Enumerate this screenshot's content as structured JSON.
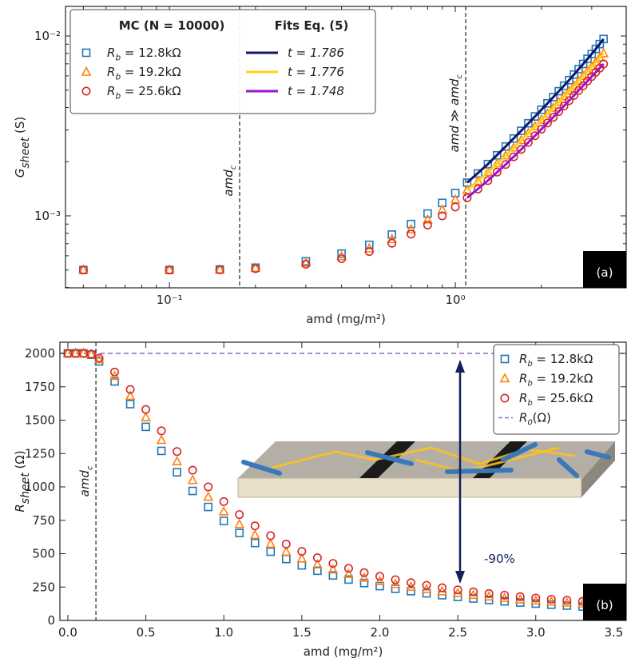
{
  "chart_data": [
    {
      "type": "scatter",
      "xscale": "log",
      "yscale": "log",
      "xlim": [
        0.0433,
        3.96
      ],
      "ylim": [
        0.000398,
        0.0146
      ],
      "xticks": [
        {
          "value": 0.1,
          "label": "10⁻¹"
        },
        {
          "value": 1,
          "label": "10⁰"
        }
      ],
      "xminorticks": [
        0.05,
        0.06,
        0.07,
        0.08,
        0.09,
        0.2,
        0.3,
        0.4,
        0.5,
        0.6,
        0.7,
        0.8,
        0.9,
        2,
        3
      ],
      "yticks": [
        {
          "value": 0.001,
          "label": "10⁻³"
        },
        {
          "value": 0.01,
          "label": "10⁻²"
        }
      ],
      "yminorticks": [
        0.0004,
        0.0005,
        0.0006,
        0.0007,
        0.0008,
        0.0009,
        0.002,
        0.003,
        0.004,
        0.005,
        0.006,
        0.007,
        0.008,
        0.009
      ],
      "xlabel": "amd (mg/m²)",
      "ylabel": [
        "G",
        "sheet",
        " (S)"
      ],
      "panel_label": "(a)",
      "legend": "upper left",
      "legend_titles": [
        "MC (N = 10000)",
        "Fits Eq. (5)"
      ],
      "vlines": [
        {
          "x": 0.176,
          "label": [
            "amd",
            "c"
          ]
        },
        {
          "x": 1.087,
          "label": [
            "amd ≫ amd",
            "c"
          ]
        }
      ],
      "x": [
        0.05,
        0.1,
        0.15,
        0.2,
        0.3,
        0.4,
        0.5,
        0.6,
        0.7,
        0.8,
        0.9,
        1.0,
        1.1,
        1.2,
        1.3,
        1.4,
        1.5,
        1.6,
        1.7,
        1.8,
        1.9,
        2.0,
        2.1,
        2.2,
        2.3,
        2.4,
        2.5,
        2.6,
        2.7,
        2.8,
        2.9,
        3.0,
        3.1,
        3.2,
        3.3
      ],
      "series": [
        {
          "name": [
            "R",
            "b",
            " = 12.8kΩ"
          ],
          "color": "#1f77b4",
          "marker": "square",
          "values": [
            0.0005,
            0.0005,
            0.000503,
            0.000515,
            0.000559,
            0.000617,
            0.00069,
            0.000787,
            0.000901,
            0.00103,
            0.00118,
            0.00134,
            0.00153,
            0.00172,
            0.00194,
            0.00217,
            0.00243,
            0.00269,
            0.00297,
            0.00327,
            0.00357,
            0.00389,
            0.00422,
            0.00457,
            0.00493,
            0.00529,
            0.00568,
            0.0061,
            0.00654,
            0.00699,
            0.00746,
            0.00794,
            0.00847,
            0.00901,
            0.00962
          ]
        },
        {
          "name": [
            "R",
            "b",
            " = 19.2kΩ"
          ],
          "color": "#ff7f0e",
          "marker": "triangle",
          "values": [
            0.0005,
            0.0005,
            0.000502,
            0.000512,
            0.000546,
            0.000595,
            0.000658,
            0.000741,
            0.00084,
            0.000952,
            0.00108,
            0.00123,
            0.00139,
            0.00156,
            0.00175,
            0.00195,
            0.00216,
            0.00239,
            0.00263,
            0.00288,
            0.00314,
            0.00341,
            0.00369,
            0.00398,
            0.00429,
            0.00461,
            0.00493,
            0.00526,
            0.00562,
            0.00599,
            0.00637,
            0.00676,
            0.00714,
            0.00758,
            0.008
          ]
        },
        {
          "name": [
            "R",
            "b",
            " = 25.6kΩ"
          ],
          "color": "#d62728",
          "marker": "circle",
          "values": [
            0.0005,
            0.0005,
            0.000501,
            0.000509,
            0.000538,
            0.000578,
            0.000633,
            0.000704,
            0.000791,
            0.000889,
            0.001,
            0.00112,
            0.00126,
            0.00141,
            0.00157,
            0.00175,
            0.00193,
            0.00213,
            0.00234,
            0.00256,
            0.00279,
            0.00303,
            0.00328,
            0.00353,
            0.0038,
            0.00408,
            0.00437,
            0.00467,
            0.00498,
            0.00529,
            0.00562,
            0.00595,
            0.00629,
            0.00662,
            0.00699
          ]
        }
      ],
      "fit_x": [
        1.1,
        1.3,
        1.5,
        1.7,
        1.9,
        2.1,
        2.3,
        2.5,
        2.7,
        2.9,
        3.1,
        3.3
      ],
      "fit_series": [
        {
          "name": "t = 1.786",
          "color": "#14146e",
          "values": [
            0.00153,
            0.00194,
            0.00243,
            0.00297,
            0.00357,
            0.00422,
            0.00493,
            0.00568,
            0.00654,
            0.00746,
            0.00847,
            0.00962
          ]
        },
        {
          "name": "t = 1.776",
          "color": "#ffd21a",
          "values": [
            0.00139,
            0.00175,
            0.00216,
            0.00263,
            0.00314,
            0.00369,
            0.00429,
            0.00493,
            0.00562,
            0.00637,
            0.00714,
            0.008
          ]
        },
        {
          "name": "t = 1.748",
          "color": "#9a16c8",
          "values": [
            0.00126,
            0.00157,
            0.00193,
            0.00234,
            0.00279,
            0.00328,
            0.0038,
            0.00437,
            0.00498,
            0.00562,
            0.00629,
            0.00699
          ]
        }
      ]
    },
    {
      "type": "scatter",
      "xscale": "linear",
      "yscale": "linear",
      "xlim": [
        -0.051,
        3.58
      ],
      "ylim": [
        0,
        2084
      ],
      "xticks": [
        {
          "value": 0,
          "label": "0.0"
        },
        0.5,
        {
          "value": 1,
          "label": "1.0"
        },
        1.5,
        {
          "value": 2,
          "label": "2.0"
        },
        2.5,
        {
          "value": 3,
          "label": "3.0"
        },
        3.5
      ],
      "yticks": [
        0,
        250,
        500,
        750,
        1000,
        1250,
        1500,
        1750,
        2000
      ],
      "xlabel": "amd (mg/m²)",
      "ylabel": [
        "R",
        "sheet",
        " (Ω)"
      ],
      "panel_label": "(b)",
      "legend": "upper right",
      "annotation": "-90%",
      "vlines": [
        {
          "x": 0.18,
          "label": [
            "amd",
            "c"
          ]
        }
      ],
      "hline": {
        "y": 2000,
        "name": [
          "R",
          "0",
          "(Ω)"
        ],
        "color": "#9467bd"
      },
      "x": [
        0,
        0.05,
        0.1,
        0.15,
        0.2,
        0.3,
        0.4,
        0.5,
        0.6,
        0.7,
        0.8,
        0.9,
        1.0,
        1.1,
        1.2,
        1.3,
        1.4,
        1.5,
        1.6,
        1.7,
        1.8,
        1.9,
        2.0,
        2.1,
        2.2,
        2.3,
        2.4,
        2.5,
        2.6,
        2.7,
        2.8,
        2.9,
        3.0,
        3.1,
        3.2,
        3.3
      ],
      "series": [
        {
          "name": [
            "R",
            "b",
            " = 12.8kΩ"
          ],
          "color": "#1f77b4",
          "marker": "square",
          "values": [
            2000,
            2000,
            2000,
            1990,
            1940,
            1790,
            1620,
            1450,
            1270,
            1110,
            970,
            850,
            745,
            655,
            580,
            515,
            460,
            412,
            372,
            337,
            306,
            280,
            257,
            237,
            219,
            203,
            189,
            176,
            164,
            153,
            143,
            134,
            126,
            118,
            111,
            104
          ]
        },
        {
          "name": [
            "R",
            "b",
            " = 19.2kΩ"
          ],
          "color": "#ff7f0e",
          "marker": "triangle",
          "values": [
            2000,
            2000,
            2000,
            1992,
            1955,
            1830,
            1680,
            1520,
            1350,
            1190,
            1050,
            925,
            815,
            720,
            640,
            572,
            513,
            462,
            418,
            380,
            347,
            318,
            293,
            271,
            251,
            233,
            217,
            203,
            190,
            178,
            167,
            157,
            148,
            140,
            132,
            125
          ]
        },
        {
          "name": [
            "R",
            "b",
            " = 25.6kΩ"
          ],
          "color": "#d62728",
          "marker": "circle",
          "values": [
            2000,
            2000,
            2000,
            1995,
            1965,
            1860,
            1730,
            1580,
            1420,
            1265,
            1125,
            1000,
            890,
            793,
            708,
            635,
            572,
            517,
            469,
            427,
            390,
            358,
            330,
            305,
            283,
            263,
            245,
            229,
            214,
            201,
            189,
            178,
            168,
            159,
            151,
            143
          ]
        }
      ]
    }
  ]
}
